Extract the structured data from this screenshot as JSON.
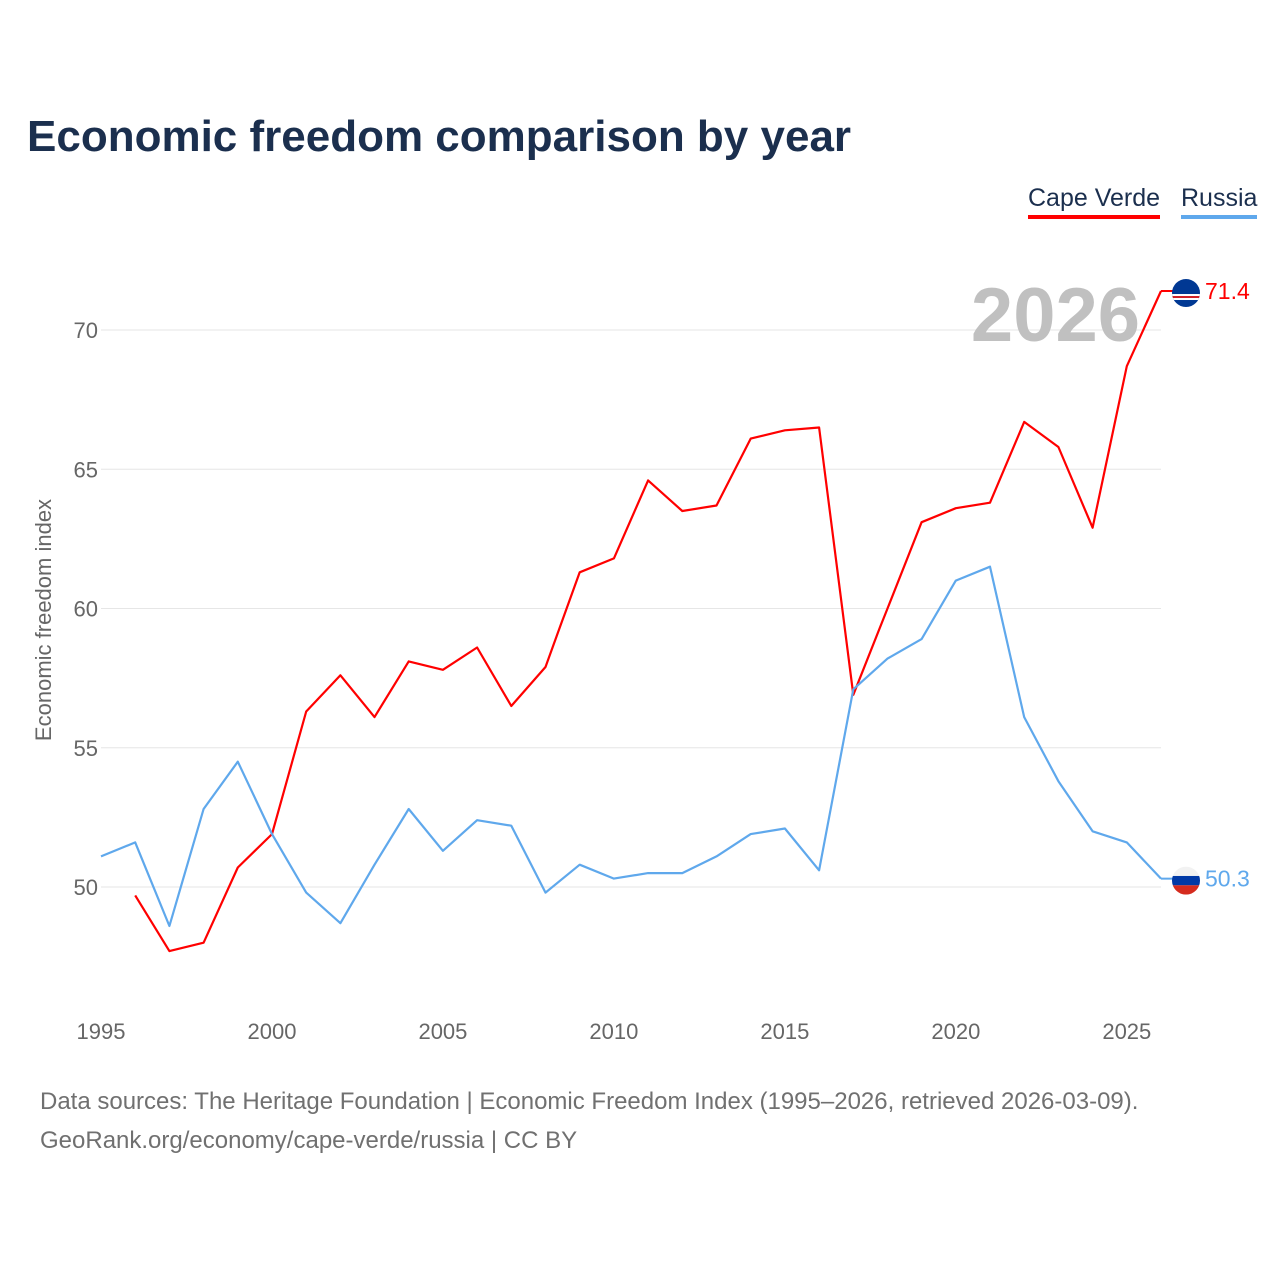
{
  "title": "Economic freedom comparison by year",
  "footer": {
    "sources": "Data sources: The Heritage Foundation | Economic Freedom Index (1995–2026, retrieved 2026-03-09).",
    "link": "GeoRank.org/economy/cape-verde/russia | CC BY"
  },
  "chart_data": {
    "type": "line",
    "title": "Economic freedom comparison by year",
    "xlabel": "",
    "ylabel": "Economic freedom index",
    "xlim": [
      1995,
      2026
    ],
    "ylim": [
      45.5,
      73
    ],
    "xticks": [
      1995,
      2000,
      2005,
      2010,
      2015,
      2020,
      2025
    ],
    "yticks": [
      50,
      55,
      60,
      65,
      70
    ],
    "grid": true,
    "legend_placement": "top-right",
    "year_label": "2026",
    "series": [
      {
        "name": "Cape Verde",
        "color": "#ff0000",
        "flag": "cape-verde-flag",
        "end_label": "71.4",
        "x": [
          1996,
          1997,
          1998,
          1999,
          2000,
          2001,
          2002,
          2003,
          2004,
          2005,
          2006,
          2007,
          2008,
          2009,
          2010,
          2011,
          2012,
          2013,
          2014,
          2015,
          2016,
          2017,
          2018,
          2019,
          2020,
          2021,
          2022,
          2023,
          2024,
          2025,
          2026
        ],
        "values": [
          49.7,
          47.7,
          48.0,
          50.7,
          51.9,
          56.3,
          57.6,
          56.1,
          58.1,
          57.8,
          58.6,
          56.5,
          57.9,
          61.3,
          61.8,
          64.6,
          63.5,
          63.7,
          66.1,
          66.4,
          66.5,
          56.9,
          60.0,
          63.1,
          63.6,
          63.8,
          66.7,
          65.8,
          62.9,
          68.7,
          71.4
        ]
      },
      {
        "name": "Russia",
        "color": "#5fa8ec",
        "flag": "russia-flag",
        "end_label": "50.3",
        "x": [
          1995,
          1996,
          1997,
          1998,
          1999,
          2000,
          2001,
          2002,
          2003,
          2004,
          2005,
          2006,
          2007,
          2008,
          2009,
          2010,
          2011,
          2012,
          2013,
          2014,
          2015,
          2016,
          2017,
          2018,
          2019,
          2020,
          2021,
          2022,
          2023,
          2024,
          2025,
          2026
        ],
        "values": [
          51.1,
          51.6,
          48.6,
          52.8,
          54.5,
          51.9,
          49.8,
          48.7,
          50.8,
          52.8,
          51.3,
          52.4,
          52.2,
          49.8,
          50.8,
          50.3,
          50.5,
          50.5,
          51.1,
          51.9,
          52.1,
          50.6,
          57.1,
          58.2,
          58.9,
          61.0,
          61.5,
          56.1,
          53.8,
          52.0,
          51.6,
          50.3
        ]
      }
    ]
  }
}
